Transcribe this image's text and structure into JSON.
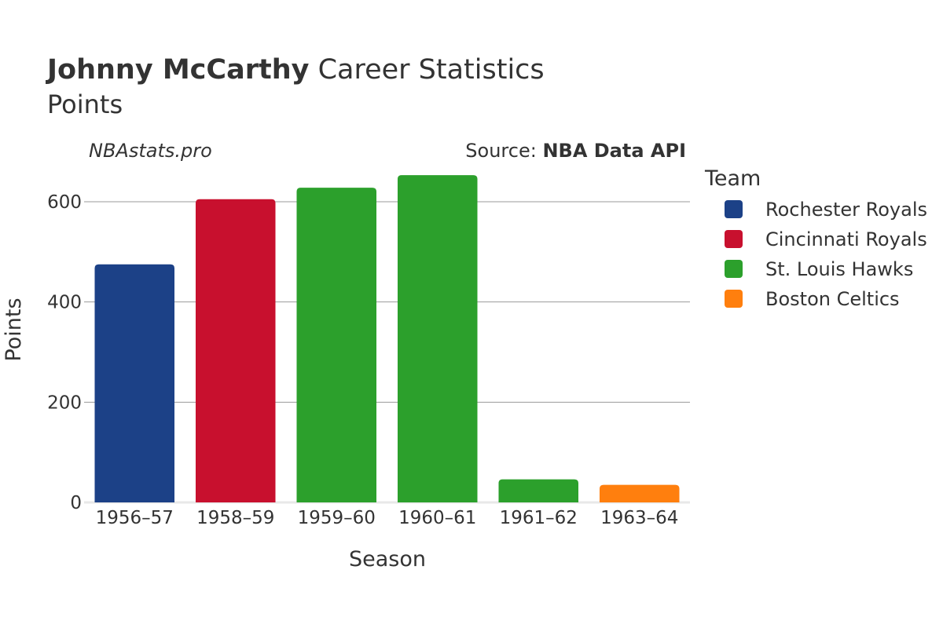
{
  "chart_data": {
    "type": "bar",
    "title_name": "Johnny McCarthy",
    "title_rest": " Career Statistics",
    "subtitle": "Points",
    "watermark": "NBAstats.pro",
    "source_label": "Source: ",
    "source_name": "NBA Data API",
    "xlabel": "Season",
    "ylabel": "Points",
    "ylim": [
      0,
      680
    ],
    "yticks": [
      0,
      200,
      400,
      600
    ],
    "grid": true,
    "legend_title": "Team",
    "legend_position": "right",
    "categories": [
      "1956–57",
      "1958–59",
      "1959–60",
      "1960–61",
      "1961–62",
      "1963–64"
    ],
    "values": [
      475,
      605,
      628,
      653,
      46,
      35
    ],
    "bar_teams": [
      "Rochester Royals",
      "Cincinnati Royals",
      "St. Louis Hawks",
      "St. Louis Hawks",
      "St. Louis Hawks",
      "Boston Celtics"
    ],
    "legend": [
      {
        "name": "Rochester Royals",
        "color": "#1c4187"
      },
      {
        "name": "Cincinnati Royals",
        "color": "#c8102e"
      },
      {
        "name": "St. Louis Hawks",
        "color": "#2ca02c"
      },
      {
        "name": "Boston Celtics",
        "color": "#ff7f0e"
      }
    ]
  }
}
